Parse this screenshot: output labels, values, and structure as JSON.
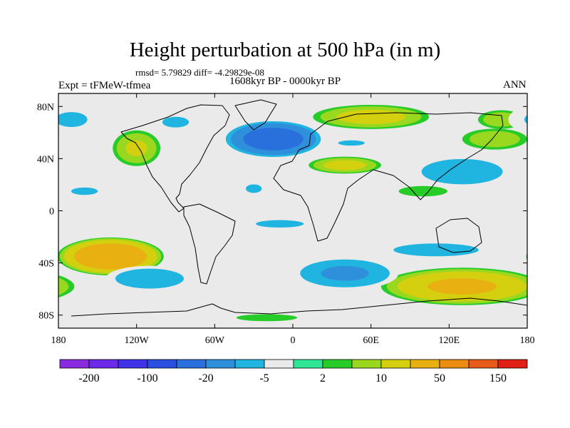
{
  "chart_data": {
    "type": "heatmap",
    "title": "Height perturbation at 500 hPa (in m)",
    "stats_line": "rmsd= 5.79829 diff= -4.29829e-08",
    "period": "1608kyr BP - 0000kyr BP",
    "experiment_label": "Expt = tFMeW-tfmea",
    "season": "ANN",
    "x_ticks": [
      "180",
      "120W",
      "60W",
      "0",
      "60E",
      "120E",
      "180"
    ],
    "x_tick_values": [
      -180,
      -120,
      -60,
      0,
      60,
      120,
      180
    ],
    "y_ticks": [
      "80N",
      "40N",
      "0",
      "40S",
      "80S"
    ],
    "y_tick_values": [
      80,
      40,
      0,
      -40,
      -80
    ],
    "xlim": [
      -180,
      180
    ],
    "ylim": [
      -90,
      90
    ],
    "colorbar": {
      "colors": [
        "#8a2be2",
        "#6a2ae8",
        "#4032e6",
        "#2a4ee0",
        "#2a70dc",
        "#2e90da",
        "#20b4e0",
        "#eaeaea",
        "#2ee696",
        "#28cc28",
        "#9ad820",
        "#d4d010",
        "#e8b010",
        "#ec8c10",
        "#e85a18",
        "#e02014"
      ],
      "labels": [
        "-200",
        "-100",
        "-20",
        "-5",
        "2",
        "10",
        "50",
        "150"
      ]
    },
    "anomalies": [
      {
        "lon": 60,
        "lat": 72,
        "rx": 48,
        "ry": 10,
        "value": 12
      },
      {
        "lon": 160,
        "lat": 70,
        "rx": 20,
        "ry": 8,
        "value": 8
      },
      {
        "lon": 155,
        "lat": 55,
        "rx": 28,
        "ry": 9,
        "value": 8
      },
      {
        "lon": -120,
        "lat": 48,
        "rx": 20,
        "ry": 15,
        "value": 10
      },
      {
        "lon": 40,
        "lat": 35,
        "rx": 30,
        "ry": 7,
        "value": 12
      },
      {
        "lon": 100,
        "lat": 15,
        "rx": 28,
        "ry": 6,
        "value": 3
      },
      {
        "lon": -140,
        "lat": -35,
        "rx": 42,
        "ry": 15,
        "value": 30
      },
      {
        "lon": 130,
        "lat": -58,
        "rx": 65,
        "ry": 15,
        "value": 20
      },
      {
        "lon": -20,
        "lat": -82,
        "rx": 35,
        "ry": 4,
        "value": 3
      },
      {
        "lon": -170,
        "lat": 70,
        "rx": 30,
        "ry": 14,
        "value": -5
      },
      {
        "lon": -90,
        "lat": 68,
        "rx": 25,
        "ry": 10,
        "value": -5
      },
      {
        "lon": -15,
        "lat": 55,
        "rx": 40,
        "ry": 15,
        "value": -25
      },
      {
        "lon": 45,
        "lat": 52,
        "rx": 25,
        "ry": 5,
        "value": -5
      },
      {
        "lon": -160,
        "lat": 15,
        "rx": 25,
        "ry": 7,
        "value": -5
      },
      {
        "lon": -30,
        "lat": 17,
        "rx": 15,
        "ry": 8,
        "value": -5
      },
      {
        "lon": 130,
        "lat": 30,
        "rx": 45,
        "ry": 14,
        "value": -8
      },
      {
        "lon": -110,
        "lat": -52,
        "rx": 38,
        "ry": 11,
        "value": -8
      },
      {
        "lon": -10,
        "lat": -10,
        "rx": 45,
        "ry": 7,
        "value": -5
      },
      {
        "lon": 40,
        "lat": -48,
        "rx": 45,
        "ry": 14,
        "value": -10
      },
      {
        "lon": 110,
        "lat": -30,
        "rx": 80,
        "ry": 12,
        "value": -5
      }
    ]
  }
}
